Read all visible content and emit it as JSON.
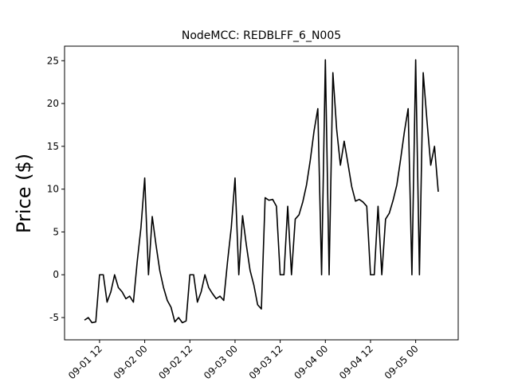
{
  "chart_data": {
    "type": "line",
    "title": "NodeMCC: REDBLFF_6_N005",
    "y_label": "Price ($)",
    "x": [
      8,
      9,
      10,
      11,
      12,
      13,
      14,
      15,
      16,
      17,
      18,
      19,
      20,
      21,
      22,
      23,
      24,
      25,
      26,
      27,
      28,
      29,
      30,
      31,
      32,
      33,
      34,
      35,
      36,
      37,
      38,
      39,
      40,
      41,
      42,
      43,
      44,
      45,
      46,
      47,
      48,
      49,
      50,
      51,
      52,
      53,
      54,
      55,
      56,
      57,
      58,
      59,
      60,
      61,
      62,
      63,
      64,
      65,
      66,
      67,
      68,
      69,
      70,
      71,
      72,
      73,
      74,
      75,
      76,
      77,
      78,
      79,
      80,
      81,
      82,
      83,
      84,
      85,
      86,
      87,
      88,
      89,
      90,
      91,
      92,
      93,
      94,
      95,
      96,
      97,
      98,
      99,
      100,
      101,
      102
    ],
    "series": [
      {
        "name": "Price",
        "color": "#000000",
        "values": [
          -5.3,
          -5.0,
          -5.6,
          -5.5,
          0,
          0,
          -3.2,
          -2.0,
          0,
          -1.5,
          -2.0,
          -2.8,
          -2.5,
          -3.2,
          1.5,
          5.5,
          11.3,
          0,
          6.8,
          3.5,
          0.5,
          -1.5,
          -3.0,
          -3.8,
          -5.5,
          -5.0,
          -5.6,
          -5.4,
          0,
          0,
          -3.2,
          -2.0,
          0,
          -1.5,
          -2.2,
          -2.8,
          -2.5,
          -3.0,
          1.5,
          5.5,
          11.3,
          0,
          6.9,
          3.5,
          0.5,
          -1.2,
          -3.5,
          -4.0,
          9.0,
          8.7,
          8.8,
          8.0,
          0,
          0,
          8.0,
          0,
          6.5,
          7.0,
          8.5,
          10.5,
          13.4,
          16.8,
          19.4,
          0,
          25.1,
          0,
          23.6,
          17.0,
          12.8,
          15.6,
          13.0,
          10.3,
          8.6,
          8.8,
          8.5,
          8.0,
          0,
          0,
          8.0,
          0,
          6.5,
          7.2,
          8.7,
          10.5,
          13.5,
          16.7,
          19.4,
          0,
          25.1,
          0,
          23.6,
          18.0,
          12.8,
          15.0,
          9.7
        ]
      }
    ],
    "xlim": [
      2.7,
      107.3
    ],
    "xticks": [
      {
        "value": 12,
        "label": "09-01 12"
      },
      {
        "value": 24,
        "label": "09-02 00"
      },
      {
        "value": 36,
        "label": "09-02 12"
      },
      {
        "value": 48,
        "label": "09-03 00"
      },
      {
        "value": 60,
        "label": "09-03 12"
      },
      {
        "value": 72,
        "label": "09-04 00"
      },
      {
        "value": 84,
        "label": "09-04 12"
      },
      {
        "value": 96,
        "label": "09-05 00"
      }
    ],
    "ylim": [
      -7.6,
      26.7
    ],
    "yticks": [
      -5,
      0,
      5,
      10,
      15,
      20,
      25
    ]
  }
}
